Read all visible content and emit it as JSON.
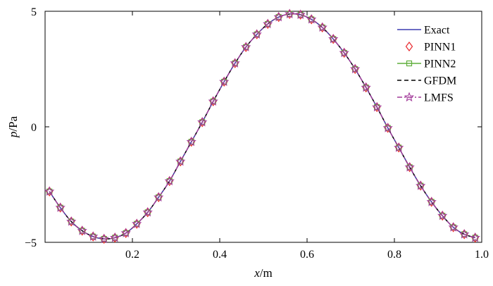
{
  "chart_data": {
    "type": "line",
    "title": "",
    "xlabel": {
      "var": "x",
      "unit": "/m"
    },
    "ylabel": {
      "var": "p",
      "unit": "/Pa"
    },
    "xlim": [
      0,
      1.0
    ],
    "ylim": [
      -5,
      5
    ],
    "xticks": [
      "0.2",
      "0.4",
      "0.6",
      "0.8",
      "1.0"
    ],
    "xtick_values": [
      0.2,
      0.4,
      0.6,
      0.8,
      1.0
    ],
    "yticks": [
      "−5",
      "0",
      "5"
    ],
    "ytick_values": [
      -5,
      0,
      5
    ],
    "grid": false,
    "legend_position": "top-right",
    "x": [
      0.01,
      0.035,
      0.06,
      0.085,
      0.11,
      0.135,
      0.16,
      0.185,
      0.21,
      0.235,
      0.26,
      0.285,
      0.31,
      0.335,
      0.36,
      0.385,
      0.41,
      0.435,
      0.46,
      0.485,
      0.51,
      0.535,
      0.56,
      0.585,
      0.61,
      0.635,
      0.66,
      0.685,
      0.71,
      0.735,
      0.76,
      0.785,
      0.81,
      0.835,
      0.86,
      0.885,
      0.91,
      0.935,
      0.96,
      0.985
    ],
    "y": [
      -2.8,
      -3.5,
      -4.1,
      -4.5,
      -4.75,
      -4.85,
      -4.8,
      -4.6,
      -4.2,
      -3.7,
      -3.05,
      -2.35,
      -1.5,
      -0.65,
      0.2,
      1.1,
      1.95,
      2.75,
      3.45,
      4.0,
      4.45,
      4.75,
      4.88,
      4.85,
      4.65,
      4.3,
      3.8,
      3.2,
      2.5,
      1.7,
      0.85,
      -0.05,
      -0.9,
      -1.75,
      -2.55,
      -3.25,
      -3.85,
      -4.35,
      -4.65,
      -4.8
    ],
    "series": [
      {
        "name": "Exact",
        "color": "#3b3bb0",
        "style": "solid",
        "marker": "none"
      },
      {
        "name": "PINN1",
        "color": "#e8292e",
        "style": "none",
        "marker": "diamond"
      },
      {
        "name": "PINN2",
        "color": "#5fae3b",
        "style": "solid",
        "marker": "square"
      },
      {
        "name": "GFDM",
        "color": "#000000",
        "style": "dashed",
        "marker": "none"
      },
      {
        "name": "LMFS",
        "color": "#a23a9a",
        "style": "dashdot",
        "marker": "star"
      }
    ]
  }
}
